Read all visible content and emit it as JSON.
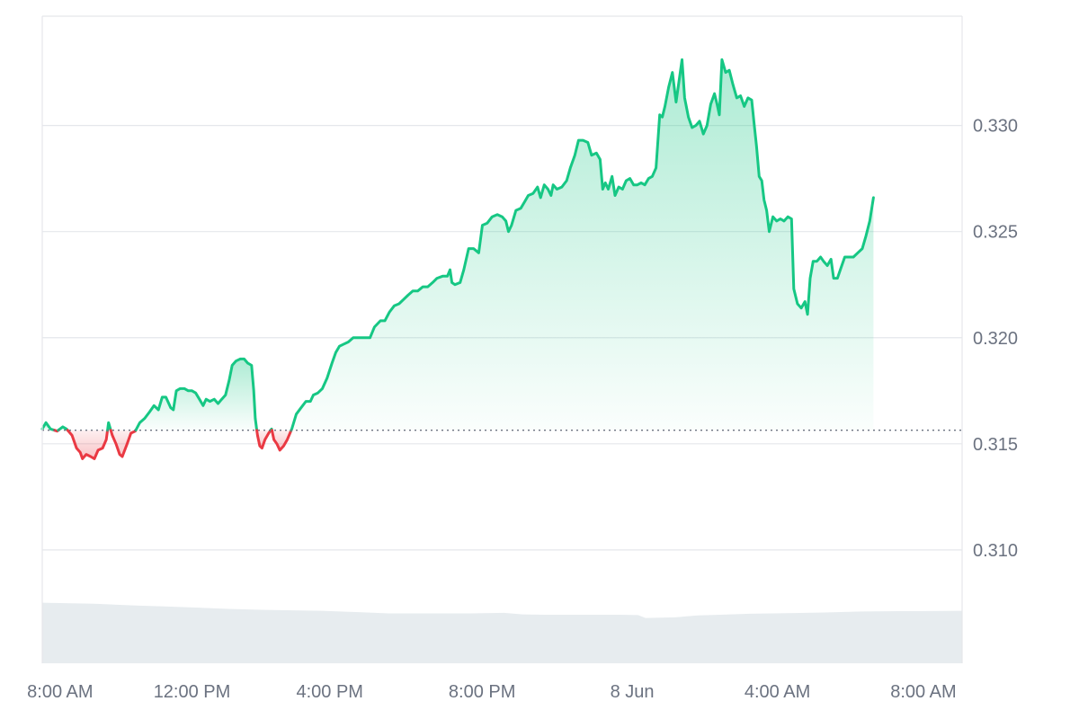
{
  "chart_data": {
    "type": "area",
    "baseline": 0.31564,
    "y_range": [
      0.30466,
      0.33515
    ],
    "y_ticks": [
      {
        "value": 0.31,
        "label": "0.310"
      },
      {
        "value": 0.315,
        "label": "0.315"
      },
      {
        "value": 0.32,
        "label": "0.320"
      },
      {
        "value": 0.325,
        "label": "0.325"
      },
      {
        "value": 0.33,
        "label": "0.330"
      }
    ],
    "x_range": [
      0,
      24.7
    ],
    "x_ticks": [
      {
        "value": 0.48,
        "label": "8:00 AM"
      },
      {
        "value": 4.02,
        "label": "12:00 PM"
      },
      {
        "value": 7.72,
        "label": "4:00 PM"
      },
      {
        "value": 11.81,
        "label": "8:00 PM"
      },
      {
        "value": 15.84,
        "label": "8 Jun"
      },
      {
        "value": 19.74,
        "label": "4:00 AM"
      },
      {
        "value": 23.66,
        "label": "8:00 AM"
      }
    ],
    "x_unit": "hours since start",
    "series": [
      {
        "points": [
          [
            0.0,
            0.3157
          ],
          [
            0.1,
            0.316
          ],
          [
            0.22,
            0.3157
          ],
          [
            0.4,
            0.3156
          ],
          [
            0.55,
            0.3158
          ],
          [
            0.65,
            0.3157
          ],
          [
            0.8,
            0.3154
          ],
          [
            0.92,
            0.3148
          ],
          [
            1.02,
            0.3146
          ],
          [
            1.08,
            0.3143
          ],
          [
            1.18,
            0.3145
          ],
          [
            1.3,
            0.3144
          ],
          [
            1.4,
            0.3143
          ],
          [
            1.5,
            0.3147
          ],
          [
            1.62,
            0.3148
          ],
          [
            1.72,
            0.3152
          ],
          [
            1.78,
            0.316
          ],
          [
            1.88,
            0.3154
          ],
          [
            1.98,
            0.315
          ],
          [
            2.08,
            0.3145
          ],
          [
            2.15,
            0.3144
          ],
          [
            2.28,
            0.315
          ],
          [
            2.38,
            0.3155
          ],
          [
            2.5,
            0.3156
          ],
          [
            2.62,
            0.316
          ],
          [
            2.75,
            0.3162
          ],
          [
            2.88,
            0.3165
          ],
          [
            3.0,
            0.3168
          ],
          [
            3.12,
            0.3166
          ],
          [
            3.22,
            0.3172
          ],
          [
            3.32,
            0.3172
          ],
          [
            3.45,
            0.3167
          ],
          [
            3.52,
            0.3166
          ],
          [
            3.6,
            0.3175
          ],
          [
            3.7,
            0.3176
          ],
          [
            3.82,
            0.3176
          ],
          [
            3.92,
            0.3175
          ],
          [
            4.02,
            0.3175
          ],
          [
            4.12,
            0.3174
          ],
          [
            4.22,
            0.3171
          ],
          [
            4.32,
            0.3168
          ],
          [
            4.4,
            0.3171
          ],
          [
            4.5,
            0.317
          ],
          [
            4.62,
            0.3171
          ],
          [
            4.72,
            0.3169
          ],
          [
            4.82,
            0.3171
          ],
          [
            4.92,
            0.3173
          ],
          [
            5.02,
            0.318
          ],
          [
            5.1,
            0.3187
          ],
          [
            5.2,
            0.3189
          ],
          [
            5.32,
            0.319
          ],
          [
            5.42,
            0.319
          ],
          [
            5.52,
            0.3188
          ],
          [
            5.62,
            0.3187
          ],
          [
            5.68,
            0.3175
          ],
          [
            5.72,
            0.3162
          ],
          [
            5.78,
            0.3154
          ],
          [
            5.84,
            0.3149
          ],
          [
            5.9,
            0.3148
          ],
          [
            5.98,
            0.3152
          ],
          [
            6.08,
            0.3155
          ],
          [
            6.16,
            0.3157
          ],
          [
            6.22,
            0.3152
          ],
          [
            6.3,
            0.315
          ],
          [
            6.38,
            0.3147
          ],
          [
            6.48,
            0.3149
          ],
          [
            6.58,
            0.3152
          ],
          [
            6.7,
            0.3157
          ],
          [
            6.82,
            0.3164
          ],
          [
            6.95,
            0.3167
          ],
          [
            7.08,
            0.317
          ],
          [
            7.2,
            0.317
          ],
          [
            7.28,
            0.3173
          ],
          [
            7.4,
            0.3174
          ],
          [
            7.52,
            0.3176
          ],
          [
            7.65,
            0.3181
          ],
          [
            7.78,
            0.3188
          ],
          [
            7.88,
            0.3193
          ],
          [
            7.98,
            0.3196
          ],
          [
            8.1,
            0.3197
          ],
          [
            8.22,
            0.3198
          ],
          [
            8.35,
            0.32
          ],
          [
            8.5,
            0.32
          ],
          [
            8.65,
            0.32
          ],
          [
            8.8,
            0.32
          ],
          [
            8.92,
            0.3205
          ],
          [
            9.08,
            0.3208
          ],
          [
            9.2,
            0.3208
          ],
          [
            9.32,
            0.3212
          ],
          [
            9.45,
            0.3215
          ],
          [
            9.58,
            0.3216
          ],
          [
            9.7,
            0.3218
          ],
          [
            9.82,
            0.322
          ],
          [
            9.95,
            0.3222
          ],
          [
            10.08,
            0.3222
          ],
          [
            10.22,
            0.3224
          ],
          [
            10.35,
            0.3224
          ],
          [
            10.48,
            0.3226
          ],
          [
            10.6,
            0.3228
          ],
          [
            10.75,
            0.3229
          ],
          [
            10.88,
            0.3229
          ],
          [
            10.95,
            0.3232
          ],
          [
            11.0,
            0.3226
          ],
          [
            11.08,
            0.3225
          ],
          [
            11.22,
            0.3226
          ],
          [
            11.32,
            0.3232
          ],
          [
            11.45,
            0.3242
          ],
          [
            11.58,
            0.3242
          ],
          [
            11.72,
            0.324
          ],
          [
            11.82,
            0.3253
          ],
          [
            11.95,
            0.3254
          ],
          [
            12.08,
            0.3257
          ],
          [
            12.22,
            0.3258
          ],
          [
            12.35,
            0.3257
          ],
          [
            12.45,
            0.3255
          ],
          [
            12.52,
            0.325
          ],
          [
            12.6,
            0.3253
          ],
          [
            12.72,
            0.326
          ],
          [
            12.85,
            0.3261
          ],
          [
            12.95,
            0.3264
          ],
          [
            13.05,
            0.3267
          ],
          [
            13.18,
            0.3268
          ],
          [
            13.3,
            0.3271
          ],
          [
            13.38,
            0.3266
          ],
          [
            13.48,
            0.3272
          ],
          [
            13.58,
            0.327
          ],
          [
            13.66,
            0.3267
          ],
          [
            13.72,
            0.3272
          ],
          [
            13.82,
            0.327
          ],
          [
            13.95,
            0.3271
          ],
          [
            14.08,
            0.3274
          ],
          [
            14.18,
            0.328
          ],
          [
            14.3,
            0.3286
          ],
          [
            14.4,
            0.3293
          ],
          [
            14.52,
            0.3293
          ],
          [
            14.65,
            0.3292
          ],
          [
            14.75,
            0.3286
          ],
          [
            14.88,
            0.3287
          ],
          [
            14.98,
            0.3284
          ],
          [
            15.05,
            0.327
          ],
          [
            15.12,
            0.3273
          ],
          [
            15.2,
            0.327
          ],
          [
            15.3,
            0.3276
          ],
          [
            15.38,
            0.3267
          ],
          [
            15.48,
            0.3271
          ],
          [
            15.58,
            0.327
          ],
          [
            15.68,
            0.3274
          ],
          [
            15.78,
            0.3275
          ],
          [
            15.88,
            0.3272
          ],
          [
            15.98,
            0.3272
          ],
          [
            16.08,
            0.3273
          ],
          [
            16.18,
            0.3272
          ],
          [
            16.28,
            0.3275
          ],
          [
            16.38,
            0.3276
          ],
          [
            16.48,
            0.328
          ],
          [
            16.58,
            0.3305
          ],
          [
            16.65,
            0.3304
          ],
          [
            16.72,
            0.3309
          ],
          [
            16.82,
            0.3318
          ],
          [
            16.92,
            0.3325
          ],
          [
            17.02,
            0.3311
          ],
          [
            17.1,
            0.3321
          ],
          [
            17.18,
            0.3331
          ],
          [
            17.25,
            0.3313
          ],
          [
            17.35,
            0.3304
          ],
          [
            17.45,
            0.3299
          ],
          [
            17.55,
            0.33
          ],
          [
            17.65,
            0.3302
          ],
          [
            17.75,
            0.3296
          ],
          [
            17.85,
            0.33
          ],
          [
            17.95,
            0.331
          ],
          [
            18.05,
            0.3315
          ],
          [
            18.12,
            0.331
          ],
          [
            18.18,
            0.3305
          ],
          [
            18.25,
            0.3331
          ],
          [
            18.35,
            0.3325
          ],
          [
            18.45,
            0.3326
          ],
          [
            18.55,
            0.3319
          ],
          [
            18.65,
            0.3313
          ],
          [
            18.75,
            0.3314
          ],
          [
            18.85,
            0.3309
          ],
          [
            18.95,
            0.3313
          ],
          [
            19.05,
            0.3312
          ],
          [
            19.12,
            0.33
          ],
          [
            19.18,
            0.329
          ],
          [
            19.25,
            0.3276
          ],
          [
            19.32,
            0.3274
          ],
          [
            19.38,
            0.3265
          ],
          [
            19.45,
            0.326
          ],
          [
            19.52,
            0.325
          ],
          [
            19.62,
            0.3257
          ],
          [
            19.72,
            0.3255
          ],
          [
            19.82,
            0.3256
          ],
          [
            19.92,
            0.3255
          ],
          [
            20.02,
            0.3257
          ],
          [
            20.12,
            0.3256
          ],
          [
            20.18,
            0.3223
          ],
          [
            20.28,
            0.3216
          ],
          [
            20.38,
            0.3214
          ],
          [
            20.48,
            0.3217
          ],
          [
            20.55,
            0.3211
          ],
          [
            20.62,
            0.3228
          ],
          [
            20.7,
            0.3236
          ],
          [
            20.8,
            0.3236
          ],
          [
            20.9,
            0.3238
          ],
          [
            20.98,
            0.3236
          ],
          [
            21.08,
            0.3234
          ],
          [
            21.18,
            0.3237
          ],
          [
            21.25,
            0.3228
          ],
          [
            21.35,
            0.3228
          ],
          [
            21.45,
            0.3233
          ],
          [
            21.55,
            0.3238
          ],
          [
            21.65,
            0.3238
          ],
          [
            21.78,
            0.3238
          ],
          [
            21.9,
            0.324
          ],
          [
            22.02,
            0.3242
          ],
          [
            22.12,
            0.3248
          ],
          [
            22.22,
            0.3255
          ],
          [
            22.32,
            0.3266
          ]
        ]
      }
    ],
    "volume": [
      [
        0.0,
        0.0935
      ],
      [
        1.4,
        0.092
      ],
      [
        2.0,
        0.0905
      ],
      [
        2.6,
        0.089
      ],
      [
        3.2,
        0.088
      ],
      [
        4.2,
        0.086
      ],
      [
        5.0,
        0.084
      ],
      [
        6.0,
        0.0825
      ],
      [
        7.5,
        0.081
      ],
      [
        8.5,
        0.079
      ],
      [
        9.3,
        0.077
      ],
      [
        10.5,
        0.077
      ],
      [
        11.5,
        0.077
      ],
      [
        12.4,
        0.078
      ],
      [
        12.9,
        0.0755
      ],
      [
        13.5,
        0.075
      ],
      [
        14.5,
        0.075
      ],
      [
        15.5,
        0.075
      ],
      [
        16.0,
        0.0745
      ],
      [
        16.2,
        0.07
      ],
      [
        17.0,
        0.071
      ],
      [
        17.6,
        0.074
      ],
      [
        18.2,
        0.075
      ],
      [
        19.0,
        0.0765
      ],
      [
        20.0,
        0.0775
      ],
      [
        21.0,
        0.0785
      ],
      [
        22.0,
        0.08
      ],
      [
        23.0,
        0.0805
      ],
      [
        24.7,
        0.081
      ]
    ],
    "colors": {
      "up_line": "#16c784",
      "down_line": "#ea3943",
      "up_fill": "#16c784",
      "down_fill": "#ea3943",
      "grid": "#e5e7eb",
      "baseline": "#6b7280",
      "volume": "#e7ecef",
      "axis_text": "#6b7280"
    }
  }
}
